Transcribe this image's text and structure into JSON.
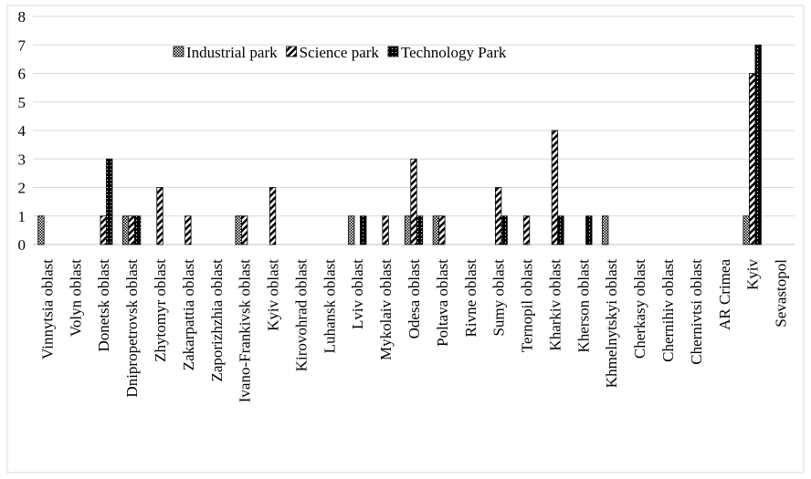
{
  "chart_data": {
    "type": "bar",
    "categories": [
      "Vinnytsia oblast",
      "Volyn oblast",
      "Donetsk oblast",
      "Dnipropetrovsk oblast",
      "Zhytomyr oblast",
      "Zakarpattia oblast",
      "Zaporizhzhia oblast",
      "Ivano-Frankivsk oblast",
      "Kyiv oblast",
      "Kirovohrad oblast",
      "Luhansk oblast",
      "Lviv oblast",
      "Mykolaiv oblast",
      "Odesa oblast",
      "Poltava oblast",
      "Rivne oblast",
      "Sumy oblast",
      "Ternopil oblast",
      "Kharkiv oblast",
      "Kherson oblast",
      "Khmelnytskyi oblast",
      "Cherkasy oblast",
      "Chernihiv oblast",
      "Chernivtsi oblast",
      "AR Crimea",
      "Kyiv",
      "Sevastopol"
    ],
    "series": [
      {
        "name": "Industrial park",
        "color": "#000000",
        "values": [
          1,
          0,
          0,
          1,
          0,
          0,
          0,
          1,
          0,
          0,
          0,
          1,
          0,
          1,
          1,
          0,
          0,
          0,
          0,
          0,
          1,
          0,
          0,
          0,
          0,
          1,
          0
        ]
      },
      {
        "name": "Science park",
        "color": "#000000",
        "values": [
          0,
          0,
          1,
          1,
          2,
          1,
          0,
          1,
          2,
          0,
          0,
          0,
          1,
          3,
          1,
          0,
          2,
          1,
          4,
          0,
          0,
          0,
          0,
          0,
          0,
          6,
          0
        ]
      },
      {
        "name": "Technology Park",
        "color": "#000000",
        "values": [
          0,
          0,
          3,
          1,
          0,
          0,
          0,
          0,
          0,
          0,
          0,
          1,
          0,
          1,
          0,
          0,
          1,
          0,
          1,
          1,
          0,
          0,
          0,
          0,
          0,
          7,
          0
        ]
      }
    ],
    "ylim": [
      0,
      8
    ],
    "yticks": [
      0,
      1,
      2,
      3,
      4,
      5,
      6,
      7,
      8
    ],
    "grid": true,
    "legend": "top"
  }
}
